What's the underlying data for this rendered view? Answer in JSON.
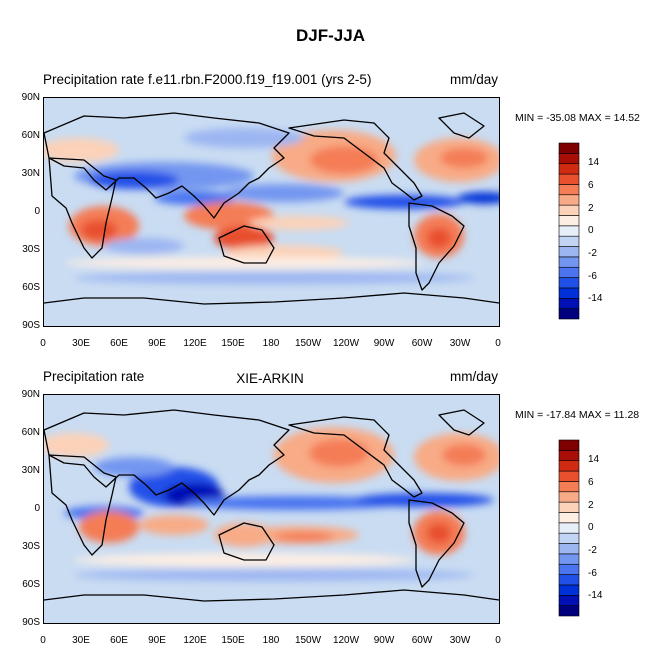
{
  "figure": {
    "title": "DJF-JJA"
  },
  "chart_data": [
    {
      "type": "heatmap",
      "title": "Precipitation rate f.e11.rbn.F2000.f19_f19.001 (yrs 2-5)",
      "center_label": "",
      "units": "mm/day",
      "stats": "MIN = -35.08 MAX =  14.52",
      "min": -35.08,
      "max": 14.52,
      "y_tick_labels": [
        "90N",
        "60N",
        "30N",
        "0",
        "30S",
        "60S",
        "90S"
      ],
      "x_tick_labels": [
        "0",
        "30E",
        "60E",
        "90E",
        "120E",
        "150E",
        "180",
        "150W",
        "120W",
        "90W",
        "60W",
        "30W",
        "0"
      ],
      "lat_range": [
        -90,
        90
      ],
      "lon_range": [
        0,
        360
      ]
    },
    {
      "type": "heatmap",
      "title": "Precipitation rate",
      "center_label": "XIE-ARKIN",
      "units": "mm/day",
      "stats": "MIN = -17.84 MAX =  11.28",
      "min": -17.84,
      "max": 11.28,
      "y_tick_labels": [
        "90N",
        "60N",
        "30N",
        "0",
        "30S",
        "60S",
        "90S"
      ],
      "x_tick_labels": [
        "0",
        "30E",
        "60E",
        "90E",
        "120E",
        "150E",
        "180",
        "150W",
        "120W",
        "90W",
        "60W",
        "30W",
        "0"
      ],
      "lat_range": [
        -90,
        90
      ],
      "lon_range": [
        0,
        360
      ]
    }
  ],
  "colorbar": {
    "colors": [
      "#00007f",
      "#0010b5",
      "#0030d8",
      "#2050e8",
      "#4a74f0",
      "#7396f0",
      "#9cb6f2",
      "#c2d4f4",
      "#e6eef8",
      "#fdeee4",
      "#fcd2b8",
      "#f8ab86",
      "#f47d56",
      "#e8502e",
      "#d02a12",
      "#a80e06",
      "#7f0000"
    ],
    "tick_labels": [
      "14",
      "6",
      "2",
      "0",
      "-2",
      "-6",
      "-14"
    ]
  }
}
